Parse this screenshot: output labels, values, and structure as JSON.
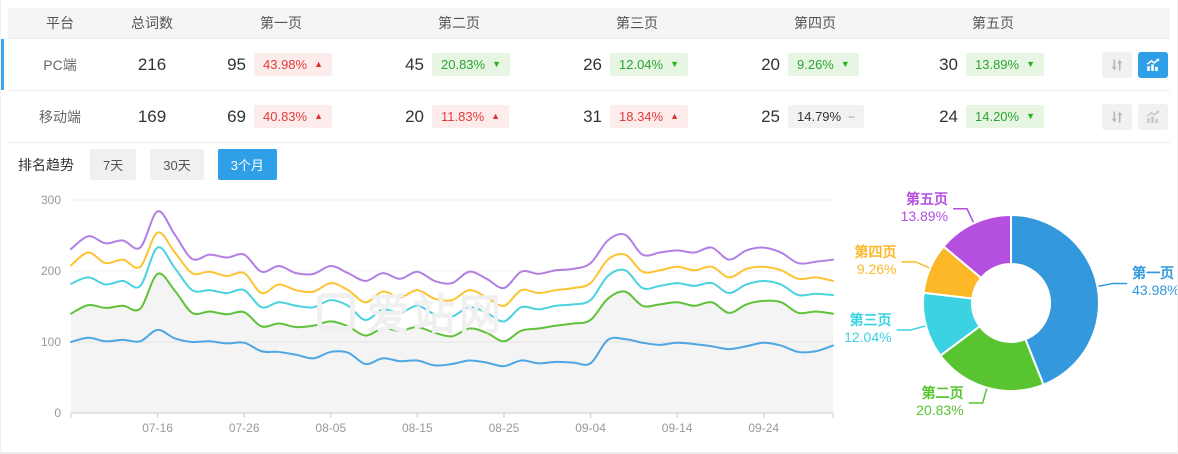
{
  "table": {
    "headers": [
      "平台",
      "总词数",
      "第一页",
      "第二页",
      "第三页",
      "第四页",
      "第五页"
    ],
    "rows": [
      {
        "platform": "PC端",
        "total": "216",
        "active": true,
        "pages": [
          {
            "count": "95",
            "pct": "43.98%",
            "trend": "up"
          },
          {
            "count": "45",
            "pct": "20.83%",
            "trend": "down"
          },
          {
            "count": "26",
            "pct": "12.04%",
            "trend": "down"
          },
          {
            "count": "20",
            "pct": "9.26%",
            "trend": "down"
          },
          {
            "count": "30",
            "pct": "13.89%",
            "trend": "down"
          }
        ]
      },
      {
        "platform": "移动端",
        "total": "169",
        "active": false,
        "pages": [
          {
            "count": "69",
            "pct": "40.83%",
            "trend": "up"
          },
          {
            "count": "20",
            "pct": "11.83%",
            "trend": "up"
          },
          {
            "count": "31",
            "pct": "18.34%",
            "trend": "up"
          },
          {
            "count": "25",
            "pct": "14.79%",
            "trend": "flat"
          },
          {
            "count": "24",
            "pct": "14.20%",
            "trend": "down"
          }
        ]
      }
    ]
  },
  "trend_section": {
    "label": "排名趋势",
    "tabs": [
      {
        "label": "7天",
        "active": false
      },
      {
        "label": "30天",
        "active": false
      },
      {
        "label": "3个月",
        "active": true
      }
    ]
  },
  "watermark": "爱站网",
  "colors": {
    "accent_blue": "#2F9FE8",
    "active_row_bar": "#41A3EB",
    "header_bg": "#F5F5F5",
    "badge_up_bg": "#FDECEC",
    "badge_up_text": "#E23C3C",
    "badge_down_bg": "#E6F6E3",
    "badge_down_text": "#2FA233",
    "badge_flat_bg": "#F2F2F2",
    "badge_flat_text": "#333333"
  },
  "chart_data": [
    {
      "type": "line",
      "title": "排名趋势(3个月)",
      "grid": true,
      "ylim": [
        0,
        300
      ],
      "y_ticks": [
        0,
        100,
        200,
        300
      ],
      "x_ticks_shown": [
        "07-16",
        "07-26",
        "08-05",
        "08-15",
        "08-25",
        "09-04",
        "09-14",
        "09-24"
      ],
      "x": [
        "07-06",
        "07-08",
        "07-10",
        "07-12",
        "07-14",
        "07-16",
        "07-18",
        "07-20",
        "07-22",
        "07-24",
        "07-26",
        "07-28",
        "07-30",
        "08-01",
        "08-03",
        "08-05",
        "08-07",
        "08-09",
        "08-11",
        "08-13",
        "08-15",
        "08-17",
        "08-19",
        "08-21",
        "08-23",
        "08-25",
        "08-27",
        "08-29",
        "08-31",
        "09-02",
        "09-04",
        "09-06",
        "09-08",
        "09-10",
        "09-12",
        "09-14",
        "09-16",
        "09-18",
        "09-20",
        "09-22",
        "09-24",
        "09-26",
        "09-28",
        "09-30",
        "10-02"
      ],
      "series": [
        {
          "name": "line-1",
          "color": "#4FA6E3",
          "area": false,
          "values": [
            100,
            106,
            101,
            103,
            101,
            117,
            105,
            100,
            101,
            98,
            99,
            87,
            86,
            82,
            77,
            86,
            85,
            69,
            77,
            73,
            74,
            67,
            69,
            74,
            71,
            66,
            74,
            70,
            72,
            71,
            70,
            103,
            104,
            99,
            96,
            99,
            97,
            94,
            90,
            94,
            99,
            95,
            86,
            87,
            95
          ]
        },
        {
          "name": "line-2",
          "color": "#5FC23A",
          "area": true,
          "values": [
            140,
            152,
            148,
            151,
            147,
            196,
            172,
            141,
            143,
            139,
            142,
            122,
            126,
            121,
            123,
            129,
            122,
            109,
            119,
            116,
            121,
            113,
            108,
            119,
            113,
            101,
            116,
            119,
            123,
            126,
            131,
            161,
            171,
            151,
            153,
            156,
            151,
            156,
            141,
            153,
            158,
            156,
            141,
            143,
            140
          ]
        },
        {
          "name": "line-3",
          "color": "#4BD2E0",
          "area": false,
          "values": [
            182,
            191,
            181,
            186,
            179,
            233,
            204,
            173,
            173,
            169,
            173,
            149,
            156,
            151,
            149,
            159,
            151,
            131,
            146,
            141,
            151,
            139,
            136,
            149,
            141,
            129,
            149,
            146,
            151,
            153,
            159,
            193,
            201,
            176,
            179,
            183,
            179,
            183,
            169,
            181,
            186,
            181,
            166,
            168,
            166
          ]
        },
        {
          "name": "line-4",
          "color": "#FCC433",
          "area": false,
          "values": [
            208,
            226,
            211,
            216,
            206,
            254,
            226,
            197,
            199,
            193,
            197,
            169,
            181,
            173,
            171,
            183,
            173,
            156,
            171,
            163,
            173,
            161,
            159,
            173,
            163,
            151,
            173,
            169,
            173,
            176,
            183,
            216,
            223,
            199,
            201,
            206,
            201,
            206,
            191,
            203,
            206,
            201,
            189,
            191,
            186
          ]
        },
        {
          "name": "line-5",
          "color": "#B37FE3",
          "area": false,
          "values": [
            231,
            249,
            239,
            243,
            233,
            284,
            251,
            217,
            223,
            219,
            223,
            199,
            207,
            197,
            196,
            207,
            197,
            186,
            197,
            189,
            199,
            186,
            183,
            199,
            189,
            176,
            199,
            196,
            201,
            203,
            211,
            243,
            251,
            223,
            226,
            229,
            226,
            233,
            216,
            229,
            233,
            226,
            211,
            213,
            216
          ]
        }
      ]
    },
    {
      "type": "pie",
      "donut": true,
      "labels": [
        "第一页",
        "第二页",
        "第三页",
        "第四页",
        "第五页"
      ],
      "values": [
        43.98,
        20.83,
        12.04,
        9.26,
        13.89
      ],
      "unit": "%",
      "colors": [
        "#3398DC",
        "#57C430",
        "#3BD2E2",
        "#FCB827",
        "#B44FE0"
      ],
      "legend_position": "callout-labels"
    }
  ]
}
